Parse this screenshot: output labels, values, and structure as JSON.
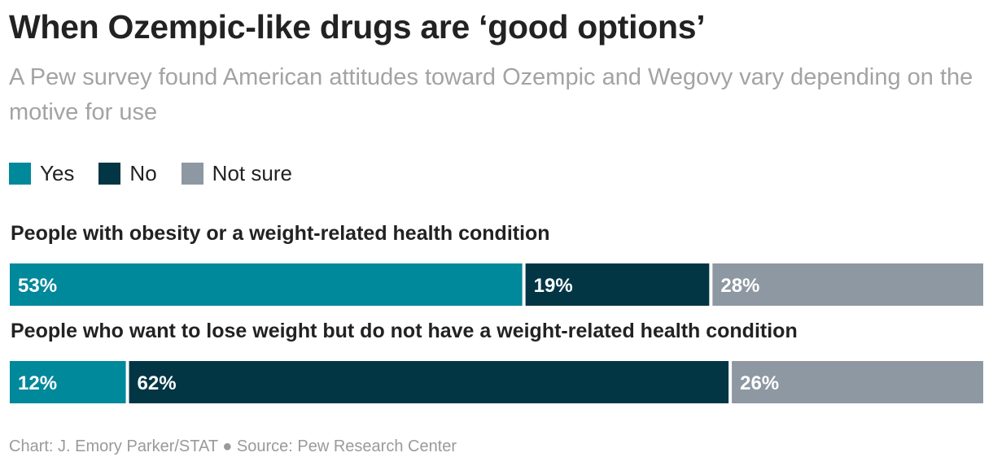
{
  "title": "When Ozempic-like drugs are ‘good options’",
  "subtitle": "A Pew survey found American attitudes toward Ozempic and Wegovy vary depending on the motive for use",
  "footer": "Chart: J. Emory Parker/STAT ● Source: Pew Research Center",
  "colors": {
    "yes": "#00889b",
    "no": "#023644",
    "not_sure": "#8e98a2"
  },
  "chart_data": {
    "type": "bar",
    "orientation": "horizontal",
    "stacked": true,
    "unit": "%",
    "categories": [
      "People with obesity or a weight-related health condition",
      "People who want to lose weight but do not have a weight-related health condition"
    ],
    "series": [
      {
        "name": "Yes",
        "values": [
          53,
          12
        ],
        "color": "#00889b",
        "labels": [
          "53%",
          "12%"
        ]
      },
      {
        "name": "No",
        "values": [
          19,
          62
        ],
        "color": "#023644",
        "labels": [
          "19%",
          "62%"
        ]
      },
      {
        "name": "Not sure",
        "values": [
          28,
          26
        ],
        "color": "#8e98a2",
        "labels": [
          "28%",
          "26%"
        ]
      }
    ],
    "legend_position": "top-left",
    "grid": false
  }
}
